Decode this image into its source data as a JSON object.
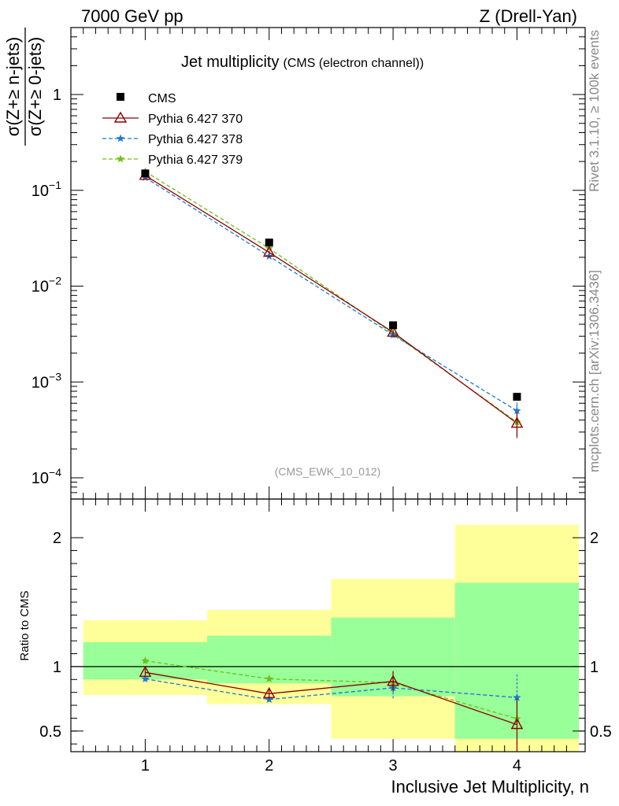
{
  "header": {
    "left": "7000 GeV pp",
    "right": "Z (Drell-Yan)"
  },
  "side_labels": {
    "rivet": "Rivet 3.1.10, ≥ 100k events",
    "mcplots": "mcplots.cern.ch [arXiv:1306.3436]"
  },
  "colors": {
    "cms": "#000000",
    "p370": "#8b0000",
    "p378": "#1e78d2",
    "p379": "#6fbf1a",
    "band_outer": "#ffff99",
    "band_inner": "#99ff99"
  },
  "chart_data": [
    {
      "type": "scatter",
      "scale": "log",
      "title": "Jet multiplicity",
      "subtitle": "(CMS (electron channel))",
      "watermark": "(CMS_EWK_10_012)",
      "ylabel_num": "σ(Z+≥ n-jets)",
      "ylabel_den": "σ(Z+≥ 0-jets)",
      "xlim": [
        0.4,
        4.55
      ],
      "ylim": [
        6e-05,
        5
      ],
      "y_tick_labels": [
        {
          "value": 1,
          "label": "1"
        },
        {
          "value": 0.1,
          "base": "10",
          "exp": "−1"
        },
        {
          "value": 0.01,
          "base": "10",
          "exp": "−2"
        },
        {
          "value": 0.001,
          "base": "10",
          "exp": "−3"
        },
        {
          "value": 0.0001,
          "base": "10",
          "exp": "−4"
        }
      ],
      "x": [
        1,
        2,
        3,
        4
      ],
      "series": [
        {
          "name": "CMS",
          "marker": "square",
          "values": [
            0.15,
            0.0285,
            0.0039,
            0.0007
          ]
        },
        {
          "name": "Pythia 6.427 370",
          "marker": "triangle",
          "line": "solid",
          "values": [
            0.143,
            0.0225,
            0.0033,
            0.00037
          ],
          "err": [
            0.004,
            0.0008,
            0.0002,
            0.00011
          ]
        },
        {
          "name": "Pythia 6.427 378",
          "marker": "star",
          "line": "dashed",
          "values": [
            0.136,
            0.0205,
            0.0031,
            0.0005
          ],
          "err": [
            0.003,
            0.0008,
            0.0002,
            0.00011
          ]
        },
        {
          "name": "Pythia 6.427 379",
          "marker": "star",
          "line": "dashed",
          "values": [
            0.157,
            0.0248,
            0.0032,
            0.00038
          ],
          "err": [
            0.004,
            0.0009,
            0.0002,
            0.00011
          ]
        }
      ]
    },
    {
      "type": "line",
      "ylabel": "Ratio to CMS",
      "xlabel": "Inclusive Jet Multiplicity, n",
      "xlim": [
        0.4,
        4.55
      ],
      "ylim": [
        0.34,
        2.3
      ],
      "x_tick_labels": [
        "1",
        "2",
        "3",
        "4"
      ],
      "y_tick_labels": [
        {
          "value": 0.5,
          "label": "0.5"
        },
        {
          "value": 1,
          "label": "1"
        },
        {
          "value": 2,
          "label": "2"
        }
      ],
      "bands": [
        {
          "x": [
            0.5,
            1.5
          ],
          "outer": [
            0.78,
            1.36
          ],
          "inner": [
            0.9,
            1.19
          ]
        },
        {
          "x": [
            1.5,
            2.5
          ],
          "outer": [
            0.71,
            1.44
          ],
          "inner": [
            0.87,
            1.24
          ]
        },
        {
          "x": [
            2.5,
            3.5
          ],
          "outer": [
            0.44,
            1.68
          ],
          "inner": [
            0.77,
            1.38
          ]
        },
        {
          "x": [
            3.5,
            4.5
          ],
          "outer": [
            0.34,
            2.1
          ],
          "inner": [
            0.44,
            1.65
          ]
        }
      ],
      "series": [
        {
          "name": "Pythia 6.427 370",
          "values": [
            0.955,
            0.79,
            0.885,
            0.55
          ],
          "err": [
            0.03,
            0.04,
            0.08,
            0.2
          ]
        },
        {
          "name": "Pythia 6.427 378",
          "values": [
            0.905,
            0.745,
            0.835,
            0.76
          ],
          "err": [
            0.02,
            0.03,
            0.09,
            0.18
          ]
        },
        {
          "name": "Pythia 6.427 379",
          "values": [
            1.045,
            0.905,
            0.875,
            0.595
          ],
          "err": [
            0.02,
            0.03,
            0.09,
            0.14
          ]
        }
      ]
    }
  ]
}
